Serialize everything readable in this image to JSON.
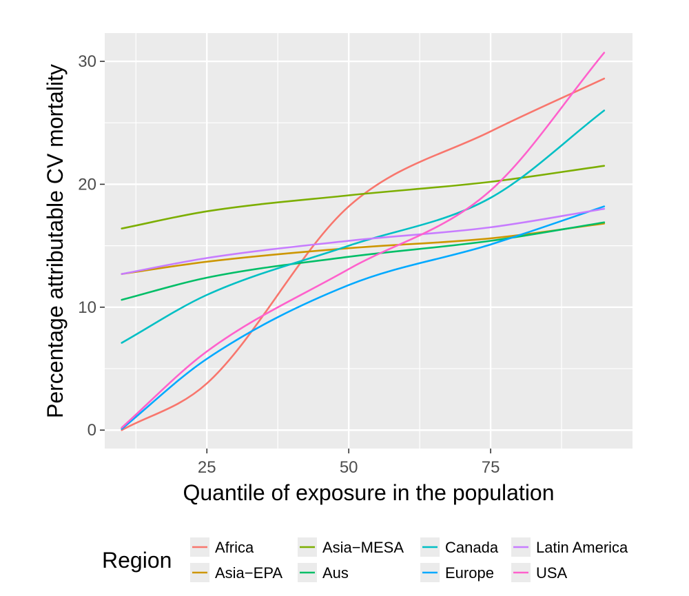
{
  "chart_data": {
    "type": "line",
    "xlabel": "Quantile of exposure in the population",
    "ylabel": "Percentage attributable CV mortality",
    "xlim": [
      7,
      100
    ],
    "ylim": [
      -1.5,
      32.3
    ],
    "x_ticks": [
      25,
      50,
      75
    ],
    "x_minor_ticks": [
      12.5,
      37.5,
      62.5,
      87.5
    ],
    "y_ticks": [
      0,
      10,
      20,
      30
    ],
    "y_minor_ticks": [
      5,
      15,
      25
    ],
    "x_tick_labels": [
      "25",
      "50",
      "75"
    ],
    "y_tick_labels": [
      "0",
      "10",
      "20",
      "30"
    ],
    "grid": true,
    "legend": {
      "title": "Region",
      "position": "bottom",
      "items": [
        "Africa",
        "Asia−EPA",
        "Asia−MESA",
        "Aus",
        "Canada",
        "Europe",
        "Latin America",
        "USA"
      ]
    },
    "x": [
      10,
      25,
      50,
      75,
      95
    ],
    "series": [
      {
        "name": "Africa",
        "color": "#F8766D",
        "values": [
          0.0,
          3.8,
          18.2,
          24.3,
          28.6
        ]
      },
      {
        "name": "Asia−EPA",
        "color": "#CD9600",
        "values": [
          12.7,
          13.7,
          14.8,
          15.6,
          16.8
        ]
      },
      {
        "name": "Asia−MESA",
        "color": "#7CAE00",
        "values": [
          16.4,
          17.8,
          19.1,
          20.2,
          21.5
        ]
      },
      {
        "name": "Aus",
        "color": "#00BE67",
        "values": [
          10.6,
          12.4,
          14.1,
          15.4,
          16.9
        ]
      },
      {
        "name": "Canada",
        "color": "#00BFC4",
        "values": [
          7.1,
          11.0,
          15.0,
          18.9,
          26.0
        ]
      },
      {
        "name": "Europe",
        "color": "#00A9FF",
        "values": [
          0.1,
          5.8,
          11.8,
          15.1,
          18.2
        ]
      },
      {
        "name": "Latin America",
        "color": "#C77CFF",
        "values": [
          12.7,
          14.0,
          15.4,
          16.5,
          18.0
        ]
      },
      {
        "name": "USA",
        "color": "#FF61CC",
        "values": [
          0.2,
          6.4,
          13.1,
          19.5,
          30.7
        ]
      }
    ]
  }
}
